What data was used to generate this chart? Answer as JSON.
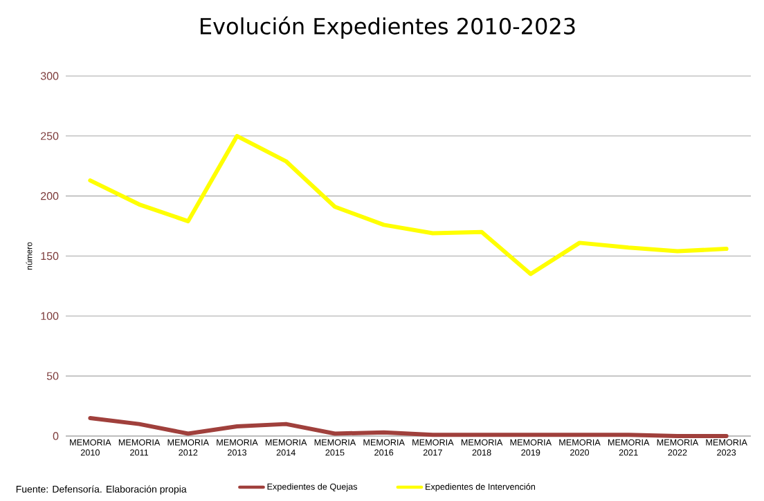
{
  "chart_data": {
    "type": "line",
    "title": "Evolución Expedientes 2010-2023",
    "ylabel": "número",
    "categories": [
      "MEMORIA 2010",
      "MEMORIA 2011",
      "MEMORIA 2012",
      "MEMORIA 2013",
      "MEMORIA 2014",
      "MEMORIA 2015",
      "MEMORIA 2016",
      "MEMORIA 2017",
      "MEMORIA 2018",
      "MEMORIA 2019",
      "MEMORIA 2020",
      "MEMORIA 2021",
      "MEMORIA 2022",
      "MEMORIA 2023"
    ],
    "series": [
      {
        "name": "Expedientes de Quejas",
        "color": "#a0403c",
        "values": [
          15,
          10,
          2,
          8,
          10,
          2,
          3,
          1,
          1,
          1,
          1,
          1,
          0,
          0
        ]
      },
      {
        "name": "Expedientes de Intervención",
        "color": "#ffff00",
        "values": [
          213,
          193,
          179,
          250,
          229,
          191,
          176,
          169,
          170,
          135,
          161,
          157,
          154,
          156
        ]
      }
    ],
    "ylim": [
      0,
      300
    ],
    "yticks": [
      0,
      50,
      100,
      150,
      200,
      250,
      300
    ],
    "grid": "y",
    "legend": "bottom",
    "marker": "none",
    "line_style": "solid",
    "annotations": [
      "Fuente: Defensoría. Elaboración propia"
    ]
  }
}
